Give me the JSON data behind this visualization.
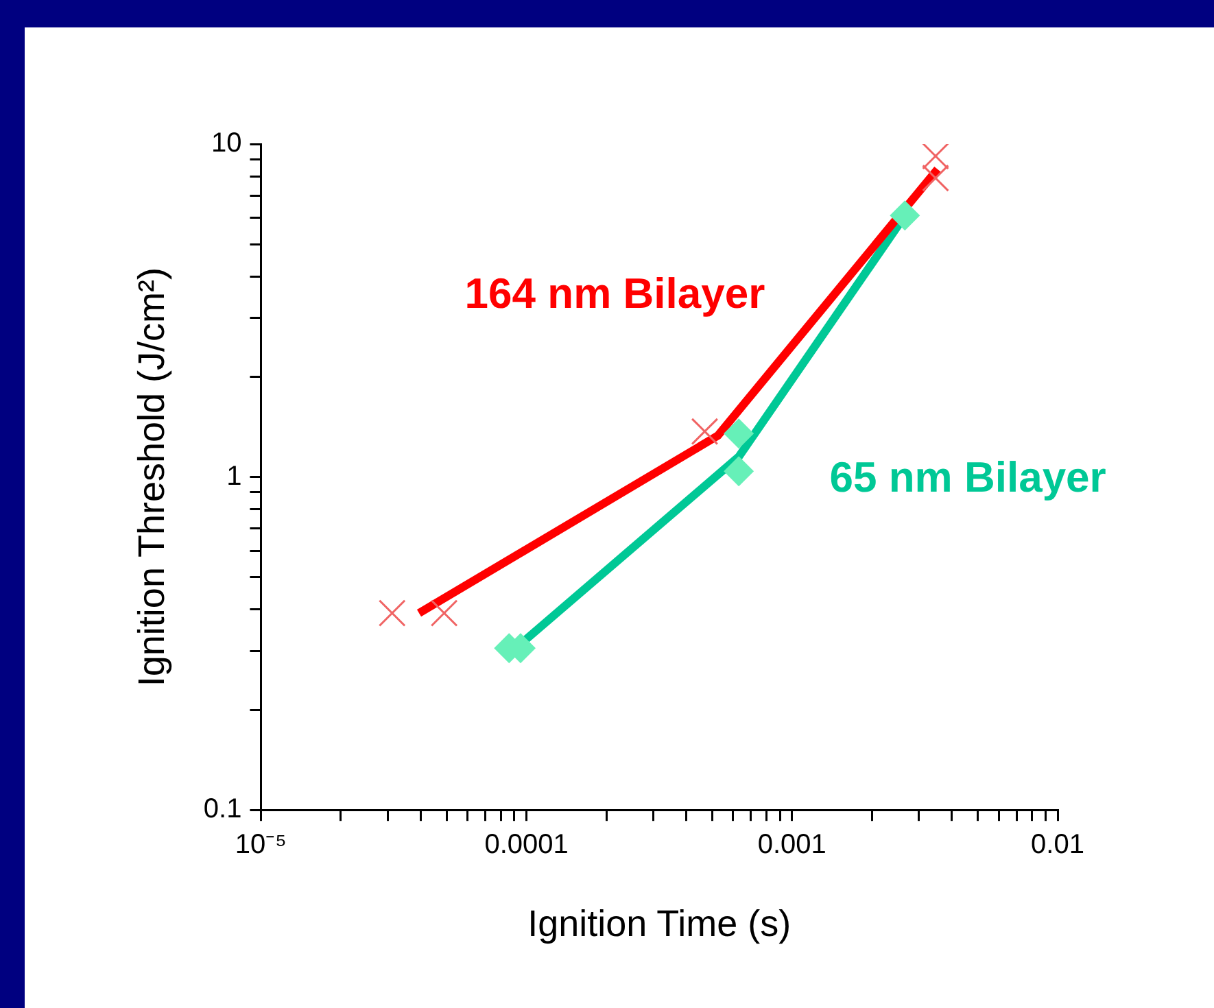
{
  "chart_data": {
    "type": "line",
    "xlabel": "Ignition Time (s)",
    "ylabel": "Ignition Threshold (J/cm²)",
    "log": "xy",
    "grid": false,
    "legend": false,
    "xlim": [
      1e-05,
      0.01
    ],
    "ylim": [
      0.1,
      10
    ],
    "xticks": [
      {
        "value": 1e-05,
        "label": "10⁻⁵"
      },
      {
        "value": 2e-05,
        "label": null
      },
      {
        "value": 3e-05,
        "label": null
      },
      {
        "value": 4e-05,
        "label": null
      },
      {
        "value": 5e-05,
        "label": null
      },
      {
        "value": 6e-05,
        "label": null
      },
      {
        "value": 7e-05,
        "label": null
      },
      {
        "value": 8e-05,
        "label": null
      },
      {
        "value": 9e-05,
        "label": null
      },
      0.0001,
      {
        "value": 0.0002,
        "label": null
      },
      {
        "value": 0.0003,
        "label": null
      },
      {
        "value": 0.0004,
        "label": null
      },
      {
        "value": 0.0005,
        "label": null
      },
      {
        "value": 0.0006,
        "label": null
      },
      {
        "value": 0.0007,
        "label": null
      },
      {
        "value": 0.0008,
        "label": null
      },
      {
        "value": 0.0009,
        "label": null
      },
      0.001,
      {
        "value": 0.002,
        "label": null
      },
      {
        "value": 0.003,
        "label": null
      },
      {
        "value": 0.004,
        "label": null
      },
      {
        "value": 0.005,
        "label": null
      },
      {
        "value": 0.006,
        "label": null
      },
      {
        "value": 0.007,
        "label": null
      },
      {
        "value": 0.008,
        "label": null
      },
      {
        "value": 0.009,
        "label": null
      },
      0.01
    ],
    "yticks": [
      0.1,
      {
        "value": 0.2,
        "label": null
      },
      {
        "value": 0.3,
        "label": null
      },
      {
        "value": 0.4,
        "label": null
      },
      {
        "value": 0.5,
        "label": null
      },
      {
        "value": 0.6,
        "label": null
      },
      {
        "value": 0.7,
        "label": null
      },
      {
        "value": 0.8,
        "label": null
      },
      {
        "value": 0.9,
        "label": null
      },
      1,
      {
        "value": 2,
        "label": null
      },
      {
        "value": 3,
        "label": null
      },
      {
        "value": 4,
        "label": null
      },
      {
        "value": 5,
        "label": null
      },
      {
        "value": 6,
        "label": null
      },
      {
        "value": 7,
        "label": null
      },
      {
        "value": 8,
        "label": null
      },
      {
        "value": 9,
        "label": null
      },
      10
    ],
    "series": [
      {
        "type": "scatter",
        "marker": "cross",
        "color": "#f06464",
        "x": [
          3.12e-05,
          4.9e-05,
          0.000469,
          0.00347,
          0.00347
        ],
        "values": [
          0.39,
          0.39,
          1.37,
          9.2,
          7.9
        ]
      },
      {
        "type": "scatter",
        "marker": "diamond",
        "color": "#66f0b8",
        "x": [
          8.6e-05,
          9.5e-05,
          0.00063,
          0.00063,
          0.00266
        ],
        "values": [
          0.306,
          0.306,
          1.35,
          1.04,
          6.1
        ]
      },
      {
        "type": "line",
        "name": "164 nm Bilayer",
        "marker": "none",
        "color": "#ff0000",
        "x": [
          3.94e-05,
          0.000525,
          0.00353
        ],
        "values": [
          0.39,
          1.33,
          8.4
        ]
      },
      {
        "type": "line",
        "name": "65 nm Bilayer",
        "marker": "none",
        "color": "#00c896",
        "x": [
          9.1e-05,
          0.00063,
          0.0027
        ],
        "values": [
          0.306,
          1.15,
          6.2
        ]
      }
    ]
  }
}
